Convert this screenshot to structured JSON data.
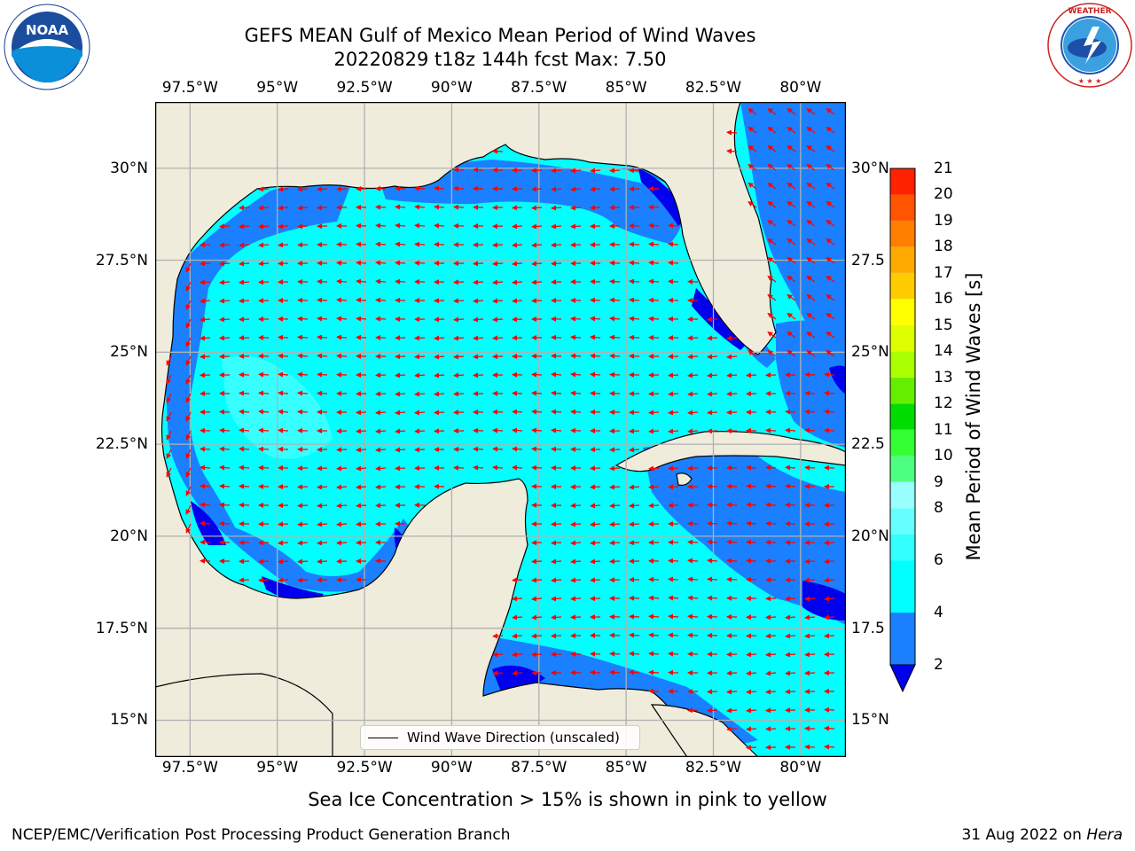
{
  "figure": {
    "title_line1": "GEFS MEAN Gulf of Mexico Mean Period of Wind Waves",
    "title_line2": "20220829 t18z 144h fcst   Max: 7.50",
    "subtitle": "Sea Ice Concentration > 15% is shown in pink to yellow",
    "footer_left": "NCEP/EMC/Verification Post Processing Product Generation Branch",
    "footer_date": "31 Aug 2022 on ",
    "footer_machine": "Hera",
    "legend_label": "Wind Wave Direction (unscaled)"
  },
  "logos": {
    "noaa": {
      "text": "NOAA",
      "ring_text": "NATIONAL OCEANIC AND ATMOSPHERIC ADMINISTRATION · U.S. DEPARTMENT OF COMMERCE"
    },
    "nws": {
      "ring_text": "NATIONAL WEATHER SERVICE"
    }
  },
  "map": {
    "lon_range": [
      -98.5,
      -78.7
    ],
    "lat_range": [
      14.0,
      31.8
    ],
    "lon_ticks": [
      "97.5°W",
      "95°W",
      "92.5°W",
      "90°W",
      "87.5°W",
      "85°W",
      "82.5°W",
      "80°W"
    ],
    "lat_ticks_left": [
      "30°N",
      "27.5°N",
      "25°N",
      "22.5°N",
      "20°N",
      "17.5°N",
      "15°N"
    ],
    "lat_ticks_right": [
      "30°N",
      "27.5",
      "25°N",
      "22.5",
      "20°N",
      "17.5",
      "15°N"
    ],
    "colors": {
      "land": "#efecdc",
      "ocean_main": "#00ffff",
      "ocean_low": "#1a80ff",
      "ocean_min": "#0000ee",
      "ocean_pale": "#66ffff",
      "arrow": "#ff0000",
      "grid": "#b0b0b0"
    },
    "arrow_direction": "toward west (wind waves from the east)"
  },
  "colorbar": {
    "label": "Mean Period of Wind Waves [s]",
    "levels": [
      "2",
      "4",
      "6",
      "7",
      "8",
      "9",
      "10",
      "11",
      "12",
      "13",
      "14",
      "15",
      "16",
      "17",
      "18",
      "19",
      "20",
      "21"
    ],
    "level_labels": [
      "2",
      "4",
      "6",
      "8",
      "9",
      "10",
      "11",
      "12",
      "13",
      "14",
      "15",
      "16",
      "17",
      "18",
      "19",
      "20",
      "21"
    ],
    "colors": [
      "#1a80ff",
      "#00ffff",
      "#33ffff",
      "#66ffff",
      "#99ffff",
      "#4dff80",
      "#33ff33",
      "#00dd00",
      "#66ee00",
      "#aaff00",
      "#ddff00",
      "#ffff00",
      "#ffcc00",
      "#ffaa00",
      "#ff8000",
      "#ff5500",
      "#ff2200",
      "#ff0000"
    ],
    "under_color": "#0000ee"
  },
  "chart_data": {
    "type": "heatmap",
    "title": "GEFS MEAN Gulf of Mexico Mean Period of Wind Waves",
    "subtitle": "20220829 t18z 144h fcst   Max: 7.50",
    "max_value": 7.5,
    "units": "s",
    "xlim": [
      -98.5,
      -78.7
    ],
    "ylim": [
      14.0,
      31.8
    ],
    "colorbar_range": [
      2,
      21
    ],
    "dominant_range": "4-6 s across most of the open Gulf and Caribbean; 2-4 s near coasts; <2 s in nearshore patches"
  }
}
